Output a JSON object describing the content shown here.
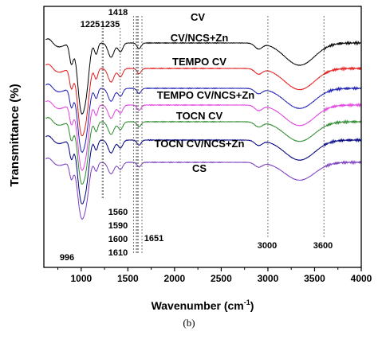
{
  "caption": "(b)",
  "chart_data": {
    "type": "line",
    "title": "",
    "xlabel": "Wavenumber (cm",
    "xlabel_superscript": "-1",
    "xlabel_close": ")",
    "ylabel": "Transmittance (%)",
    "xlim": [
      600,
      4000
    ],
    "x_ticks": [
      "1000",
      "1500",
      "2000",
      "2500",
      "3000",
      "3500",
      "4000"
    ],
    "y_ticks_shown": false,
    "grid": false,
    "legend": "none",
    "series": [
      {
        "name": "CV",
        "color": "#000000"
      },
      {
        "name": "CV/NCS+Zn",
        "color": "#e41a1c"
      },
      {
        "name": "TEMPO CV",
        "color": "#1f1fb4"
      },
      {
        "name": "TEMPO CV/NCS+Zn",
        "color": "#e040e0"
      },
      {
        "name": "TOCN CV",
        "color": "#2e8b2e"
      },
      {
        "name": "TOCN CV/NCS+Zn",
        "color": "#000080"
      },
      {
        "name": "CS",
        "color": "#7b3fc0"
      }
    ],
    "reference_lines": [
      1225,
      1235,
      1418,
      1560,
      1590,
      1600,
      1610,
      1651,
      3000,
      3600
    ],
    "annotations": [
      {
        "text": "1225",
        "x": 1225
      },
      {
        "text": "1235",
        "x": 1235
      },
      {
        "text": "1418",
        "x": 1418
      },
      {
        "text": "1560",
        "x": 1560
      },
      {
        "text": "1590",
        "x": 1590
      },
      {
        "text": "1600",
        "x": 1600
      },
      {
        "text": "1610",
        "x": 1610
      },
      {
        "text": "1651",
        "x": 1651
      },
      {
        "text": "996",
        "x": 996
      },
      {
        "text": "3000",
        "x": 3000
      },
      {
        "text": "3600",
        "x": 3600
      }
    ]
  }
}
